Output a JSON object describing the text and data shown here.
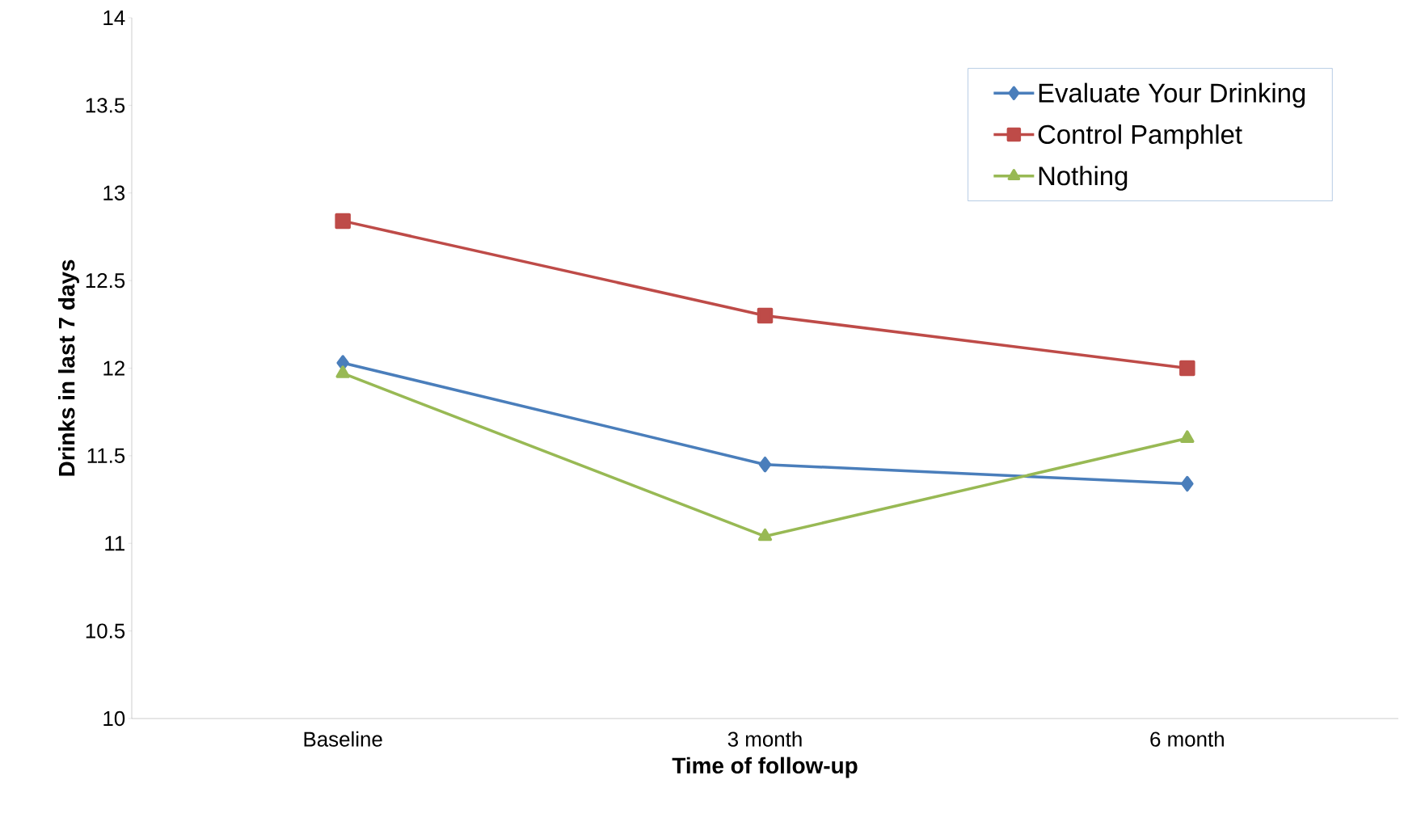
{
  "chart_data": {
    "type": "line",
    "xlabel": "Time of follow-up",
    "ylabel": "Drinks in last 7 days",
    "categories": [
      "Baseline",
      "3 month",
      "6 month"
    ],
    "series": [
      {
        "name": "Evaluate Your Drinking",
        "color": "#4a7ebb",
        "marker": "diamond",
        "values": [
          12.03,
          11.45,
          11.34
        ]
      },
      {
        "name": "Control Pamphlet",
        "color": "#be4b48",
        "marker": "square",
        "values": [
          12.84,
          12.3,
          12.0
        ]
      },
      {
        "name": "Nothing",
        "color": "#98b954",
        "marker": "triangle",
        "values": [
          11.97,
          11.04,
          11.6
        ]
      }
    ],
    "ylim": [
      10,
      14
    ],
    "yticks": [
      10,
      10.5,
      11,
      11.5,
      12,
      12.5,
      13,
      13.5,
      14
    ],
    "legend": "top right",
    "grid": false,
    "line_style": "solid"
  }
}
